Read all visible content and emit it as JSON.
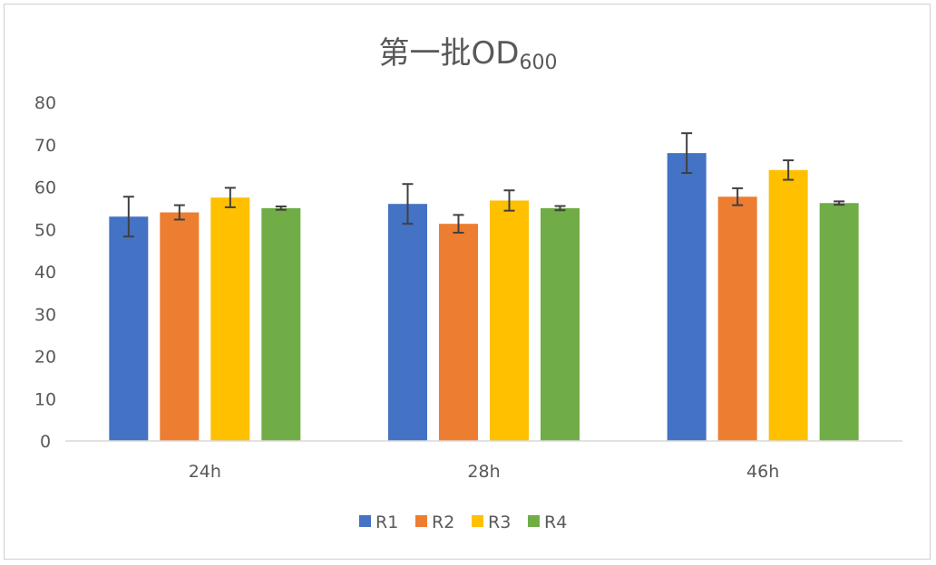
{
  "chart_data": {
    "type": "bar",
    "title": "第一批OD",
    "title_subscript": "600",
    "categories": [
      "24h",
      "28h",
      "46h"
    ],
    "series": [
      {
        "name": "R1",
        "color": "#4472C4",
        "values": [
          53,
          56,
          68
        ],
        "errors": [
          4.7,
          4.7,
          4.7
        ]
      },
      {
        "name": "R2",
        "color": "#ED7D31",
        "values": [
          54,
          51.3,
          57.7
        ],
        "errors": [
          1.7,
          2.1,
          2.0
        ]
      },
      {
        "name": "R3",
        "color": "#FFC000",
        "values": [
          57.5,
          56.8,
          64
        ],
        "errors": [
          2.3,
          2.4,
          2.3
        ]
      },
      {
        "name": "R4",
        "color": "#70AD47",
        "values": [
          55,
          55,
          56.2
        ],
        "errors": [
          0.4,
          0.5,
          0.4
        ]
      }
    ],
    "ylim": [
      0,
      80
    ],
    "yticks": [
      0,
      10,
      20,
      30,
      40,
      50,
      60,
      70,
      80
    ],
    "grid": false,
    "legend_position": "bottom",
    "xlabel": "",
    "ylabel": ""
  }
}
